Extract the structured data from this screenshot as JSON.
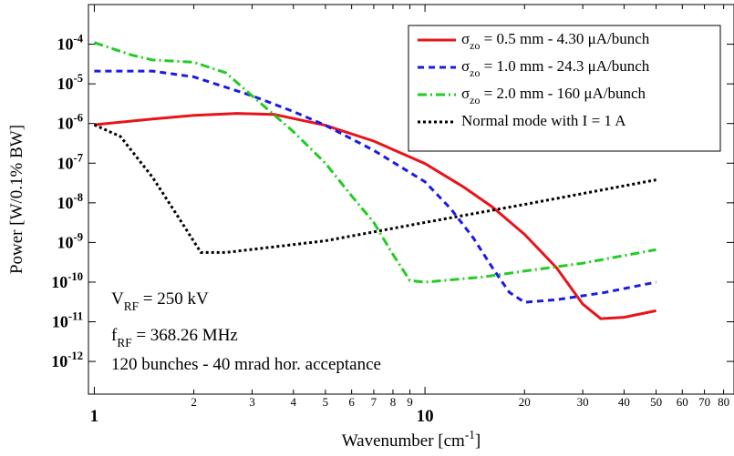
{
  "chart_data": {
    "type": "line",
    "xlabel": "Wavenumber [cm^{-1}]",
    "ylabel": "Power [W/0.1% BW]",
    "xscale": "log",
    "yscale": "log",
    "xlim": [
      0.96,
      86
    ],
    "ylim": [
      1.5e-13,
      0.001
    ],
    "xticks": [
      1,
      2,
      3,
      4,
      5,
      6,
      7,
      8,
      9,
      10,
      20,
      30,
      40,
      50,
      60,
      70,
      80
    ],
    "yticks": [
      {
        "value": 0.0001,
        "label": "10^{-4}"
      },
      {
        "value": 1e-05,
        "label": "10^{-5}"
      },
      {
        "value": 1e-06,
        "label": "10^{-6}"
      },
      {
        "value": 1e-07,
        "label": "10^{-7}"
      },
      {
        "value": 1e-08,
        "label": "10^{-8}"
      },
      {
        "value": 1e-09,
        "label": "10^{-9}"
      },
      {
        "value": 1e-10,
        "label": "10^{-10}"
      },
      {
        "value": 1e-11,
        "label": "10^{-11}"
      },
      {
        "value": 1e-12,
        "label": "10^{-12}"
      }
    ],
    "legend": "upper right",
    "annotations": [
      "V_{RF} = 250 kV",
      "f_{RF} = 368.26 MHz",
      "120 bunches - 40 mrad hor. acceptance"
    ],
    "series": [
      {
        "name": "σ_{zo} = 0.5 mm - 4.30 μA/bunch",
        "color": "#e8141a",
        "linestyle": "solid",
        "x": [
          1,
          1.5,
          2,
          2.7,
          3.5,
          5,
          7,
          10,
          13,
          16,
          20,
          25,
          30,
          34,
          40,
          50
        ],
        "values": [
          9.3e-07,
          1.3e-06,
          1.6e-06,
          1.8e-06,
          1.7e-06,
          9e-07,
          3.6e-07,
          9.8e-08,
          2.6e-08,
          7.8e-09,
          1.6e-09,
          2.3e-10,
          2.8e-11,
          1.2e-11,
          1.3e-11,
          1.9e-11
        ]
      },
      {
        "name": "σ_{zo} = 1.0 mm - 24.3 μA/bunch",
        "color": "#1a1ae6",
        "linestyle": "dashed",
        "x": [
          1,
          1.5,
          2,
          3,
          4,
          5,
          7,
          10,
          12,
          14,
          16,
          18,
          20,
          25,
          35,
          50
        ],
        "values": [
          2.1e-05,
          2.1e-05,
          1.5e-05,
          5e-06,
          2e-06,
          9e-07,
          2.1e-07,
          3.4e-08,
          6.9e-09,
          1.3e-09,
          2.3e-10,
          5.5e-11,
          3.1e-11,
          3.6e-11,
          5.5e-11,
          1e-10
        ]
      },
      {
        "name": "σ_{zo} = 2.0 mm -  160 μA/bunch",
        "color": "#22cc22",
        "linestyle": "dashdot",
        "x": [
          1,
          1.3,
          1.5,
          2,
          2.5,
          3,
          4,
          5,
          6,
          7,
          8,
          9,
          10,
          15,
          20,
          30,
          50
        ],
        "values": [
          0.00011,
          5.3e-05,
          4e-05,
          3.5e-05,
          1.9e-05,
          5e-06,
          6.2e-07,
          1e-07,
          1.5e-08,
          3.2e-09,
          5e-10,
          1.1e-10,
          1e-10,
          1.35e-10,
          1.9e-10,
          3e-10,
          6.6e-10
        ]
      },
      {
        "name": "Normal mode with I = 1 A",
        "color": "#000000",
        "linestyle": "dotted",
        "x": [
          1,
          1.2,
          1.5,
          1.8,
          2.1,
          2.5,
          5,
          10,
          20,
          50
        ],
        "values": [
          9.3e-07,
          4.7e-07,
          4.4e-08,
          4.2e-09,
          5.6e-10,
          5.6e-10,
          1.1e-09,
          3.2e-09,
          9.1e-09,
          3.8e-08
        ]
      }
    ]
  }
}
